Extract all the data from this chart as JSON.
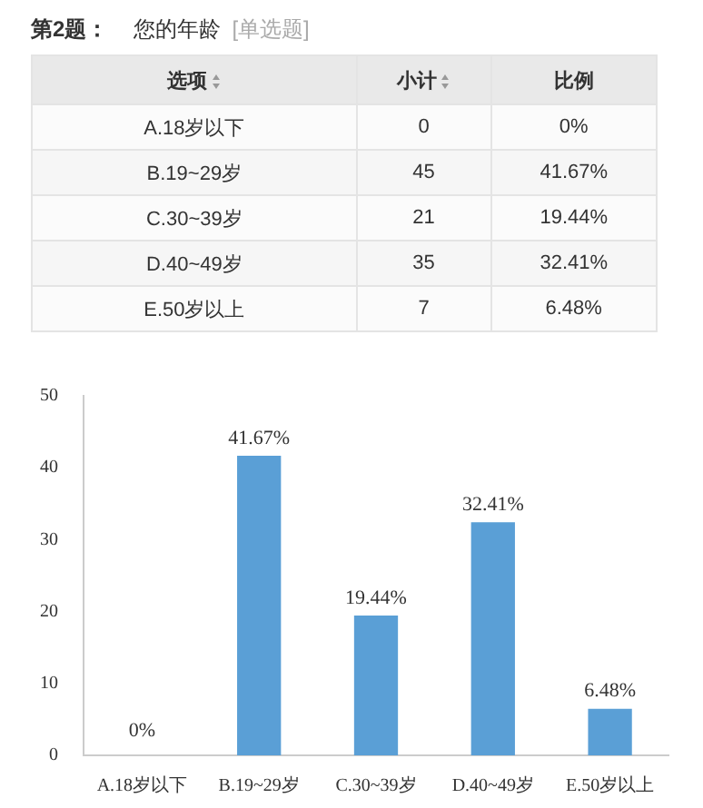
{
  "chart_data": [
    {
      "type": "other",
      "title": "第2题：",
      "subtitle": "您的年龄",
      "annotations": [
        "[单选题]"
      ],
      "xlabel": "选项",
      "data_labels": true,
      "categories": [
        "A.18岁以下",
        "B.19~29岁",
        "C.30~39岁",
        "D.40~49岁",
        "E.50岁以上"
      ],
      "series": [
        {
          "name": "小计",
          "colors": [
            "#fbfbfb",
            "#f6f6f6",
            "#fbfbfb",
            "#f6f6f6",
            "#fbfbfb"
          ],
          "values": [
            0,
            45,
            21,
            35,
            7
          ]
        },
        {
          "name": "比例",
          "values": [
            0,
            41.67,
            19.44,
            32.41,
            6.48
          ],
          "value_labels": [
            "0%",
            "41.67%",
            "19.44%",
            "32.41%",
            "6.48%"
          ]
        }
      ]
    },
    {
      "type": "bar",
      "categories": [
        "A.18岁以下",
        "B.19~29岁",
        "C.30~39岁",
        "D.40~49岁",
        "E.50岁以上"
      ],
      "values": [
        0,
        41.67,
        19.44,
        32.41,
        6.48
      ],
      "value_labels": [
        "0%",
        "41.67%",
        "19.44%",
        "32.41%",
        "6.48%"
      ],
      "color": "#5a9fd6",
      "ylim": [
        0,
        50
      ],
      "yticks": [
        0,
        10,
        20,
        30,
        40,
        50
      ],
      "grid": false
    }
  ]
}
